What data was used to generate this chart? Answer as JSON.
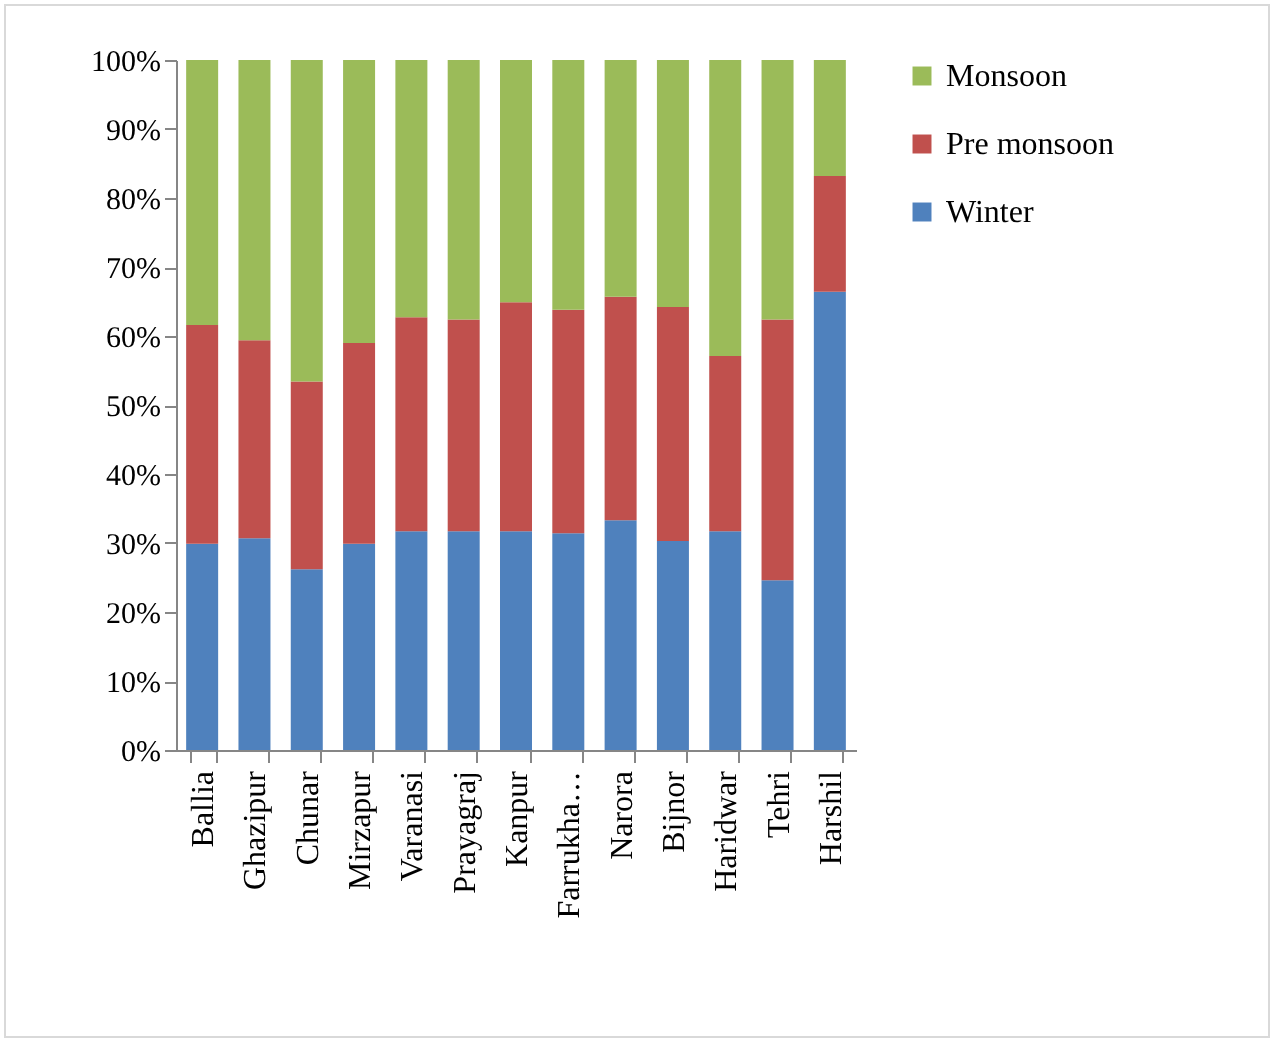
{
  "chart_data": {
    "type": "bar",
    "stacked": true,
    "categories": [
      "Ballia",
      "Ghazipur",
      "Chunar",
      "Mirzapur",
      "Varanasi",
      "Prayagraj",
      "Kanpur",
      "Farrukha…",
      "Narora",
      "Bijnor",
      "Haridwar",
      "Tehri",
      "Harshil"
    ],
    "series": [
      {
        "name": "Winter",
        "color": "#4f81bd",
        "values": [
          29.9,
          30.7,
          26.2,
          29.9,
          31.7,
          31.7,
          31.7,
          31.4,
          33.3,
          30.3,
          31.7,
          24.6,
          66.4
        ]
      },
      {
        "name": "Pre monsoon",
        "color": "#c0504d",
        "values": [
          31.7,
          28.7,
          27.2,
          29.1,
          31.0,
          30.7,
          33.2,
          32.4,
          32.4,
          33.9,
          25.4,
          37.8,
          16.8
        ]
      },
      {
        "name": "Monsoon",
        "color": "#9bbb59",
        "values": [
          38.4,
          40.6,
          46.6,
          41.0,
          37.3,
          37.6,
          35.1,
          36.2,
          34.3,
          35.8,
          42.9,
          37.6,
          16.8
        ]
      }
    ],
    "ylim": [
      0,
      100
    ],
    "yticks": [
      {
        "value": 0,
        "label": "0%"
      },
      {
        "value": 10,
        "label": "10%"
      },
      {
        "value": 20,
        "label": "20%"
      },
      {
        "value": 30,
        "label": "30%"
      },
      {
        "value": 40,
        "label": "40%"
      },
      {
        "value": 50,
        "label": "50%"
      },
      {
        "value": 60,
        "label": "60%"
      },
      {
        "value": 70,
        "label": "70%"
      },
      {
        "value": 80,
        "label": "80%"
      },
      {
        "value": 90,
        "label": "90%"
      },
      {
        "value": 100,
        "label": "100%"
      }
    ],
    "grid": false,
    "legend": "right"
  }
}
